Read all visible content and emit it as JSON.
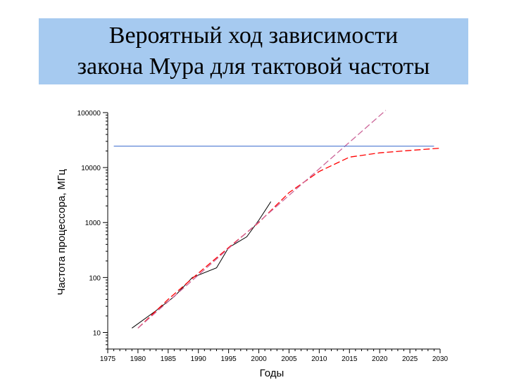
{
  "slide": {
    "title": "Вероятный ход зависимости\nзакона Мура для тактовой частоты"
  },
  "chart_data": {
    "type": "line",
    "title": "",
    "xlabel": "Годы",
    "ylabel": "Частота процессора, МГц",
    "y_scale": "log",
    "xlim": [
      1975,
      2030
    ],
    "ylim": [
      5,
      100000
    ],
    "x_ticks": [
      1975,
      1980,
      1985,
      1990,
      1995,
      2000,
      2005,
      2010,
      2015,
      2020,
      2025,
      2030
    ],
    "y_ticks": [
      10,
      100,
      1000,
      10000,
      100000
    ],
    "y_tick_labels": [
      "10",
      "100",
      "1000",
      "10000",
      "100000"
    ],
    "grid": false,
    "legend": "none",
    "series": [
      {
        "style": "solid",
        "color": "#000000",
        "x": [
          1979,
          1983,
          1986,
          1989,
          1993,
          1995,
          1998,
          2000,
          2002
        ],
        "y": [
          12,
          25,
          45,
          100,
          150,
          350,
          550,
          1100,
          2400
        ]
      },
      {
        "style": "dashed",
        "color": "#ff0000",
        "x": [
          1980,
          1985,
          1990,
          1995,
          2000,
          2005,
          2010,
          2015,
          2020,
          2025,
          2030
        ],
        "y": [
          12,
          40,
          120,
          350,
          1000,
          3500,
          8500,
          15500,
          18500,
          20500,
          22500
        ]
      },
      {
        "style": "dashed",
        "color": "#cc6699",
        "x": [
          1980,
          2021
        ],
        "y": [
          12,
          110000
        ]
      },
      {
        "style": "solid",
        "color": "#3366cc",
        "x": [
          1976,
          2029
        ],
        "y": [
          24500,
          24500
        ]
      }
    ]
  }
}
